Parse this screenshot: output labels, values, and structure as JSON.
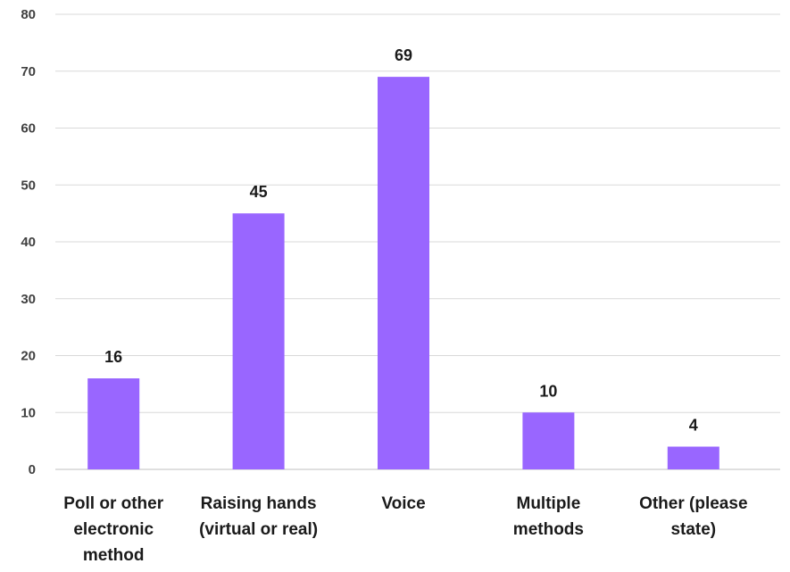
{
  "chart_data": {
    "type": "bar",
    "categories": [
      [
        "Poll or other",
        "electronic",
        "method"
      ],
      [
        "Raising hands",
        "(virtual or real)"
      ],
      [
        "Voice"
      ],
      [
        "Multiple",
        "methods"
      ],
      [
        "Other (please",
        "state)"
      ]
    ],
    "values": [
      16,
      45,
      69,
      10,
      4
    ],
    "ylim": [
      0,
      80
    ],
    "yticks": [
      0,
      10,
      20,
      30,
      40,
      50,
      60,
      70,
      80
    ],
    "grid": true,
    "bar_color": "#9966ff"
  }
}
